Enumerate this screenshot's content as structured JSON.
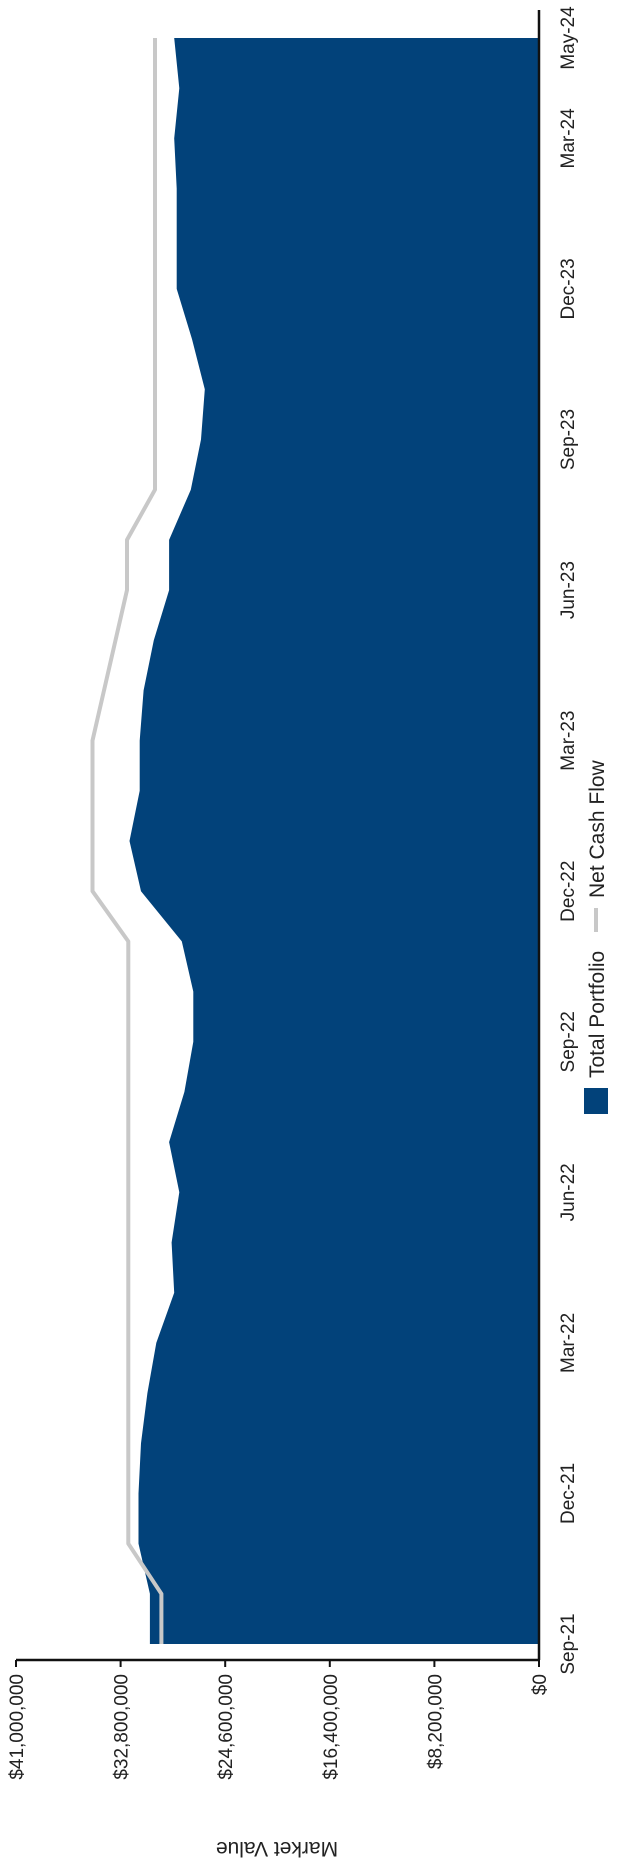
{
  "colors": {
    "total_portfolio": "#02427a",
    "net_cash_flow": "#c8c8c8",
    "axis": "#111111"
  },
  "chart_data": {
    "type": "area",
    "orientation": "rotated-90-clockwise",
    "title": "",
    "xlabel": "",
    "ylabel": "Market Value",
    "x_tick_labels": [
      "Sep-21",
      "Dec-21",
      "Mar-22",
      "Jun-22",
      "Sep-22",
      "Dec-22",
      "Mar-23",
      "Jun-23",
      "Sep-23",
      "Dec-23",
      "Mar-24",
      "May-24"
    ],
    "y_tick_labels": [
      "$0",
      "$8,200,000",
      "$16,400,000",
      "$24,600,000",
      "$32,800,000",
      "$41,000,000"
    ],
    "ylim": [
      0,
      41000000
    ],
    "grid": false,
    "legend": "bottom",
    "x": [
      "Sep-21",
      "Oct-21",
      "Nov-21",
      "Dec-21",
      "Jan-22",
      "Feb-22",
      "Mar-22",
      "Apr-22",
      "May-22",
      "Jun-22",
      "Jul-22",
      "Aug-22",
      "Sep-22",
      "Oct-22",
      "Nov-22",
      "Dec-22",
      "Jan-23",
      "Feb-23",
      "Mar-23",
      "Apr-23",
      "May-23",
      "Jun-23",
      "Jul-23",
      "Aug-23",
      "Sep-23",
      "Oct-23",
      "Nov-23",
      "Dec-23",
      "Jan-24",
      "Feb-24",
      "Mar-24",
      "Apr-24",
      "May-24"
    ],
    "series": [
      {
        "name": "Total Portfolio",
        "kind": "area",
        "values": [
          30500000,
          30500000,
          31400000,
          31400000,
          31200000,
          30700000,
          30000000,
          28600000,
          28800000,
          28200000,
          29000000,
          27800000,
          27100000,
          27100000,
          28000000,
          31200000,
          32100000,
          31300000,
          31300000,
          31000000,
          30200000,
          29000000,
          29000000,
          27300000,
          26500000,
          26200000,
          27200000,
          28400000,
          28400000,
          28400000,
          28600000,
          28200000,
          28600000
        ]
      },
      {
        "name": "Net Cash Flow",
        "kind": "line",
        "values": [
          29600000,
          29600000,
          32200000,
          32200000,
          32200000,
          32200000,
          32200000,
          32200000,
          32200000,
          32200000,
          32200000,
          32200000,
          32200000,
          32200000,
          32200000,
          35000000,
          35000000,
          35000000,
          35000000,
          34100000,
          33200000,
          32300000,
          32300000,
          30100000,
          30100000,
          30100000,
          30100000,
          30100000,
          30100000,
          30100000,
          30100000,
          30100000,
          30100000
        ]
      }
    ]
  }
}
